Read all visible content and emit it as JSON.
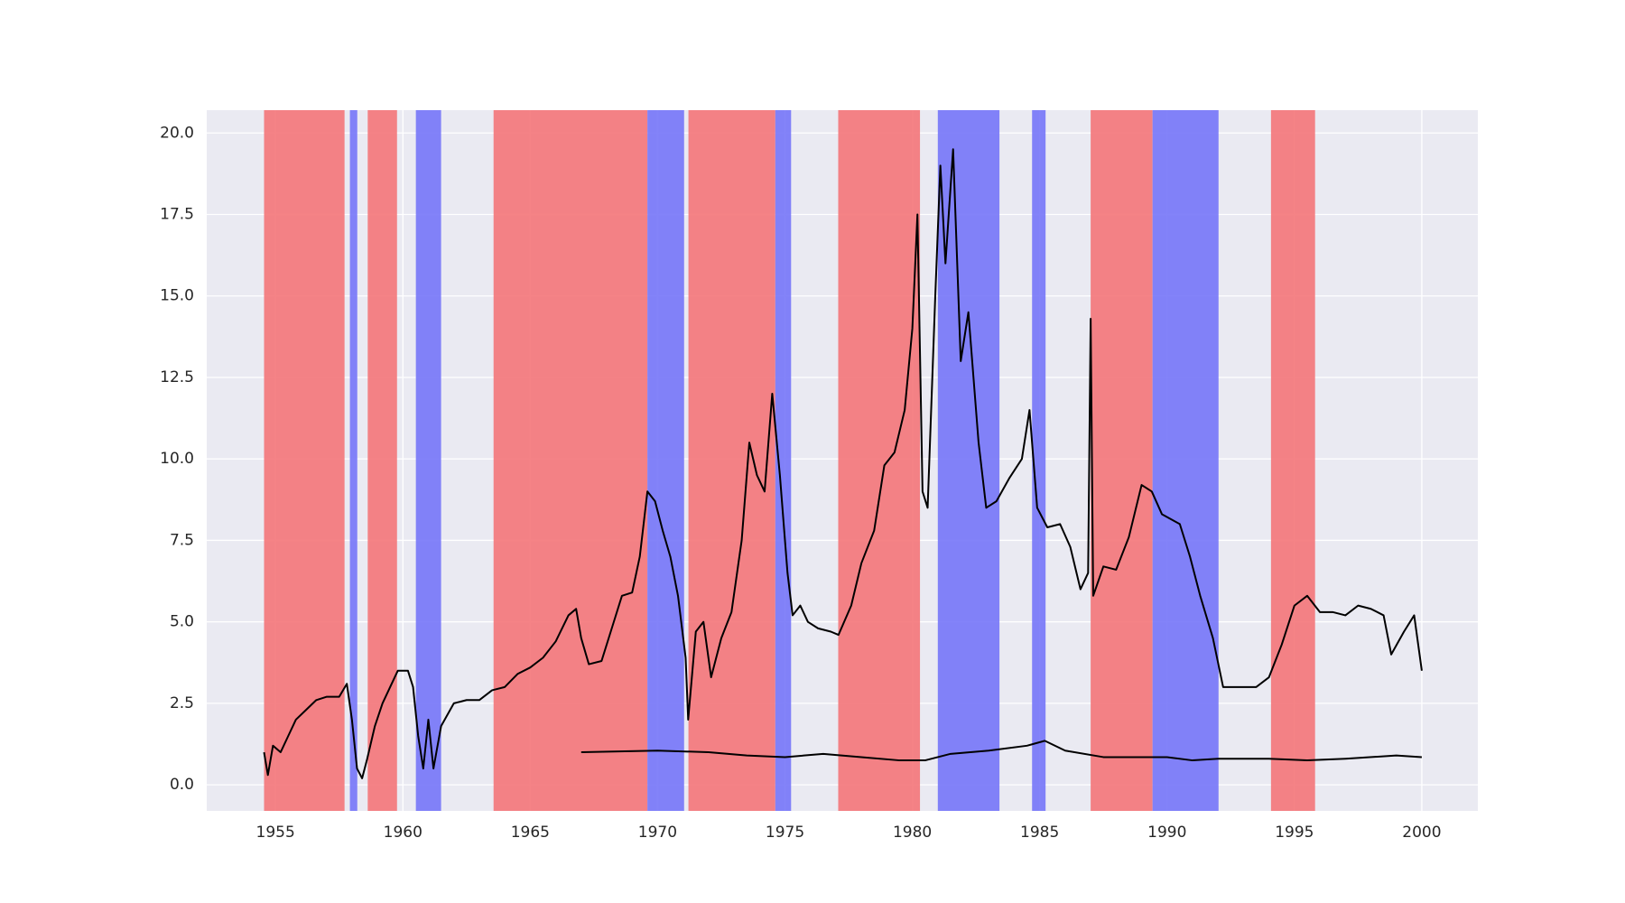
{
  "chart_data": {
    "type": "line",
    "background": "#eaeaf2",
    "grid": true,
    "grid_color": "#ffffff",
    "xlim": [
      1952.3,
      2002.2
    ],
    "xticks": [
      1955,
      1960,
      1965,
      1970,
      1975,
      1980,
      1985,
      1990,
      1995,
      2000
    ],
    "ylim": [
      -0.8,
      20.7
    ],
    "yticks": [
      {
        "value": 0,
        "label": "0.0"
      },
      2.5,
      {
        "value": 5,
        "label": "5.0"
      },
      7.5,
      {
        "value": 10,
        "label": "10.0"
      },
      12.5,
      {
        "value": 15,
        "label": "15.0"
      },
      17.5,
      {
        "value": 20,
        "label": "20.0"
      }
    ],
    "spans": [
      {
        "start": 1954.55,
        "end": 1957.71,
        "color": "#f47579"
      },
      {
        "start": 1957.92,
        "end": 1958.21,
        "color": "#7575f8"
      },
      {
        "start": 1958.62,
        "end": 1959.77,
        "color": "#f47579"
      },
      {
        "start": 1960.51,
        "end": 1961.5,
        "color": "#7575f8"
      },
      {
        "start": 1963.56,
        "end": 1969.6,
        "color": "#f47579"
      },
      {
        "start": 1969.6,
        "end": 1971.04,
        "color": "#7575f8"
      },
      {
        "start": 1971.21,
        "end": 1974.62,
        "color": "#f47579"
      },
      {
        "start": 1974.62,
        "end": 1975.24,
        "color": "#7575f8"
      },
      {
        "start": 1977.09,
        "end": 1980.3,
        "color": "#f47579"
      },
      {
        "start": 1981.0,
        "end": 1983.42,
        "color": "#7575f8"
      },
      {
        "start": 1984.7,
        "end": 1985.23,
        "color": "#7575f8"
      },
      {
        "start": 1987.0,
        "end": 1989.43,
        "color": "#f47579"
      },
      {
        "start": 1989.43,
        "end": 1992.02,
        "color": "#7575f8"
      },
      {
        "start": 1994.08,
        "end": 1995.81,
        "color": "#f47579"
      }
    ],
    "series": [
      {
        "color": "#000000",
        "x": [
          1954.55,
          1954.7,
          1954.9,
          1955.2,
          1955.5,
          1955.8,
          1956.2,
          1956.6,
          1957.0,
          1957.5,
          1957.8,
          1958.0,
          1958.2,
          1958.4,
          1958.6,
          1958.9,
          1959.2,
          1959.5,
          1959.8,
          1960.2,
          1960.4,
          1960.6,
          1960.8,
          1961.0,
          1961.2,
          1961.5,
          1962.0,
          1962.5,
          1963.0,
          1963.5,
          1964.0,
          1964.5,
          1965.0,
          1965.5,
          1966.0,
          1966.5,
          1966.8,
          1967.0,
          1967.3,
          1967.8,
          1968.2,
          1968.6,
          1969.0,
          1969.3,
          1969.6,
          1969.9,
          1970.2,
          1970.5,
          1970.8,
          1971.1,
          1971.2,
          1971.5,
          1971.8,
          1972.1,
          1972.5,
          1972.9,
          1973.3,
          1973.6,
          1973.9,
          1974.2,
          1974.5,
          1974.8,
          1975.1,
          1975.3,
          1975.6,
          1975.9,
          1976.3,
          1976.8,
          1977.1,
          1977.6,
          1978.0,
          1978.5,
          1978.9,
          1979.3,
          1979.7,
          1980.0,
          1980.2,
          1980.4,
          1980.6,
          1980.9,
          1981.1,
          1981.3,
          1981.6,
          1981.9,
          1982.2,
          1982.6,
          1982.9,
          1983.3,
          1983.8,
          1984.3,
          1984.6,
          1984.9,
          1985.3,
          1985.8,
          1986.2,
          1986.6,
          1986.9,
          1987.0,
          1987.1,
          1987.5,
          1988.0,
          1988.5,
          1989.0,
          1989.4,
          1989.8,
          1990.5,
          1990.9,
          1991.3,
          1991.8,
          1992.2,
          1992.8,
          1993.5,
          1994.0,
          1994.5,
          1995.0,
          1995.5,
          1996.0,
          1996.5,
          1997.0,
          1997.5,
          1998.0,
          1998.5,
          1998.8,
          1999.3,
          1999.7,
          2000.0
        ],
        "values": [
          1.0,
          0.3,
          1.2,
          1.0,
          1.5,
          2.0,
          2.3,
          2.6,
          2.7,
          2.7,
          3.1,
          2.0,
          0.5,
          0.2,
          0.8,
          1.8,
          2.5,
          3.0,
          3.5,
          3.5,
          3.0,
          1.5,
          0.5,
          2.0,
          0.5,
          1.8,
          2.5,
          2.6,
          2.6,
          2.9,
          3.0,
          3.4,
          3.6,
          3.9,
          4.4,
          5.2,
          5.4,
          4.5,
          3.7,
          3.8,
          4.8,
          5.8,
          5.9,
          7.0,
          9.0,
          8.7,
          7.8,
          7.0,
          5.8,
          3.9,
          2.0,
          4.7,
          5.0,
          3.3,
          4.5,
          5.3,
          7.5,
          10.5,
          9.5,
          9.0,
          12.0,
          9.5,
          6.5,
          5.2,
          5.5,
          5.0,
          4.8,
          4.7,
          4.6,
          5.5,
          6.8,
          7.8,
          9.8,
          10.2,
          11.5,
          14.0,
          17.5,
          9.0,
          8.5,
          15.0,
          19.0,
          16.0,
          19.5,
          13.0,
          14.5,
          10.5,
          8.5,
          8.7,
          9.4,
          10.0,
          11.5,
          8.5,
          7.9,
          8.0,
          7.3,
          6.0,
          6.5,
          14.3,
          5.8,
          6.7,
          6.6,
          7.6,
          9.2,
          9.0,
          8.3,
          8.0,
          7.0,
          5.8,
          4.5,
          3.0,
          3.0,
          3.0,
          3.3,
          4.3,
          5.5,
          5.8,
          5.3,
          5.3,
          5.2,
          5.5,
          5.4,
          5.2,
          4.0,
          4.7,
          5.2,
          3.5
        ]
      },
      {
        "color": "#000000",
        "x": [
          1967.0,
          1970.0,
          1972.0,
          1973.5,
          1975.0,
          1976.5,
          1978.0,
          1979.5,
          1980.5,
          1981.5,
          1983.0,
          1984.5,
          1985.2,
          1986.0,
          1987.5,
          1989.0,
          1990.0,
          1991.0,
          1992.0,
          1993.0,
          1994.0,
          1995.5,
          1997.0,
          1999.0,
          2000.0
        ],
        "values": [
          1.0,
          1.05,
          1.0,
          0.9,
          0.85,
          0.95,
          0.85,
          0.75,
          0.75,
          0.95,
          1.05,
          1.2,
          1.35,
          1.05,
          0.85,
          0.85,
          0.85,
          0.75,
          0.8,
          0.8,
          0.8,
          0.75,
          0.8,
          0.9,
          0.85
        ]
      }
    ]
  }
}
